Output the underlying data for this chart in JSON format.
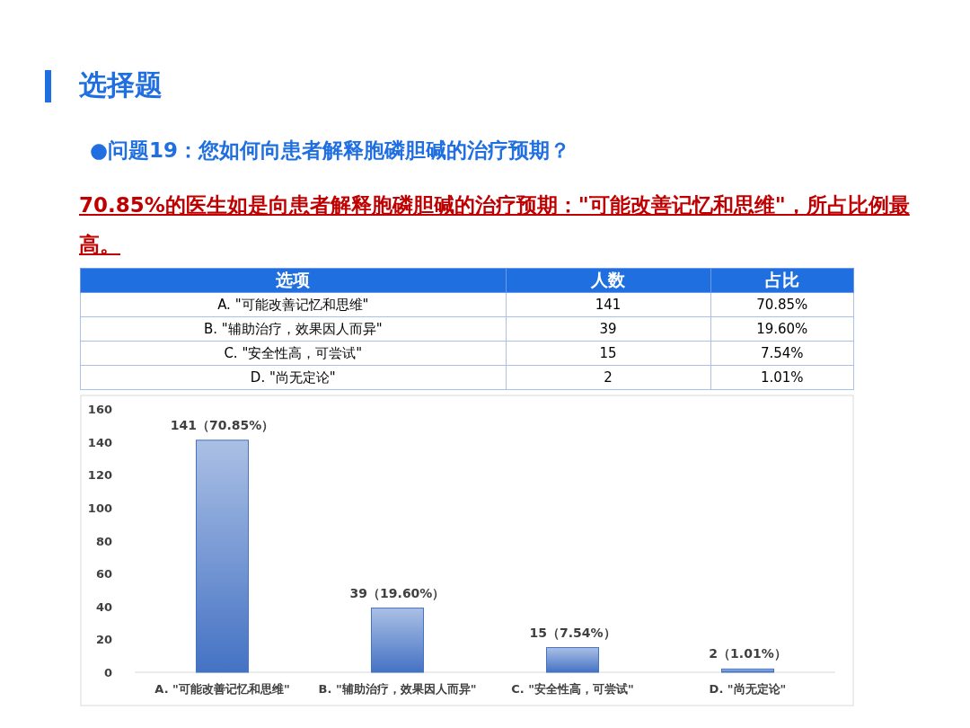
{
  "chart_data": [
    {
      "type": "other",
      "title": "选择题",
      "subtitle": "●问题19：您如何向患者解释胞磷胆碱的治疗预期？",
      "annotations": [
        "70.85%的医生如是向患者解释胞磷胆碱的治疗预期：\"可能改善记忆和思维\"，所占比例最高。",
        "选项",
        "人数",
        "占比",
        "A. \"可能改善记忆和思维\"",
        "141",
        "70.85%",
        "B. \"辅助治疗，效果因人而异\"",
        "39",
        "19.60%",
        "C. \"安全性高，可尝试\"",
        "15",
        "7.54%",
        "D. \"尚无定论\"",
        "2",
        "1.01%"
      ]
    },
    {
      "type": "bar",
      "categories": [
        "A. \"可能改善记忆和思维\"",
        "B. \"辅助治疗，效果因人而异\"",
        "C. \"安全性高，可尝试\"",
        "D. \"尚无定论\""
      ],
      "values": [
        141,
        39,
        15,
        2
      ],
      "value_labels": [
        "141（70.85%）",
        "39（19.60%）",
        "15（7.54%）",
        "2（1.01%）"
      ],
      "color": "#4472c4",
      "ylim": [
        0,
        160
      ],
      "yticks": [
        0,
        20,
        40,
        60,
        80,
        100,
        120,
        140,
        160
      ]
    }
  ]
}
